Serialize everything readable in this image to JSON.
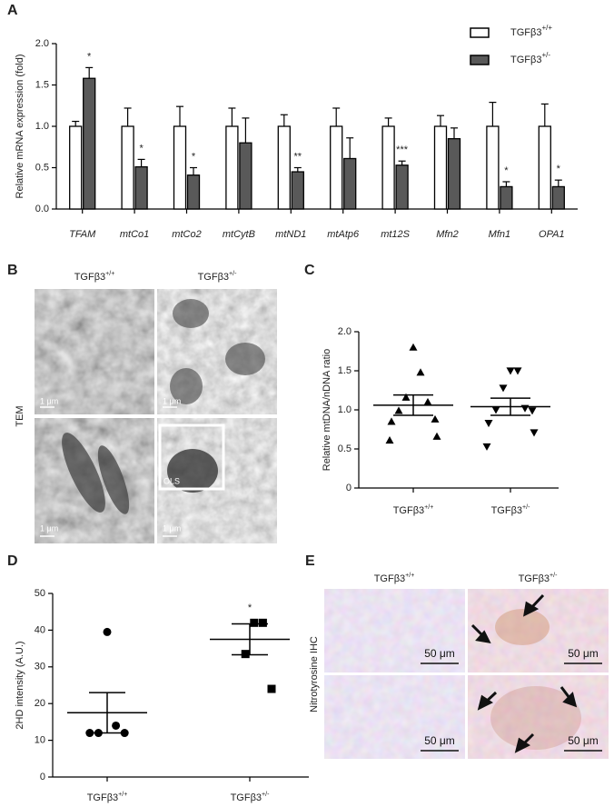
{
  "panel_labels": [
    "A",
    "B",
    "C",
    "D",
    "E"
  ],
  "chart_data": [
    {
      "type": "bar",
      "ylabel": "Relative mRNA expression (fold)",
      "categories": [
        "TFAM",
        "mtCo1",
        "mtCo2",
        "mtCytB",
        "mtND1",
        "mtAtp6",
        "mt12S",
        "Mfn2",
        "Mfn1",
        "OPA1"
      ],
      "series": [
        {
          "name": "TGFβ3",
          "name_sup": "+/+",
          "color": "#ffffff",
          "values": [
            1,
            1,
            1,
            1,
            1,
            1,
            1,
            1,
            1,
            1
          ],
          "errors": [
            0.06,
            0.22,
            0.24,
            0.22,
            0.14,
            0.22,
            0.1,
            0.13,
            0.29,
            0.27
          ]
        },
        {
          "name": "TGFβ3",
          "name_sup": "+/-",
          "color": "#595959",
          "values": [
            1.58,
            0.51,
            0.41,
            0.8,
            0.45,
            0.61,
            0.53,
            0.85,
            0.27,
            0.27
          ],
          "errors": [
            0.13,
            0.09,
            0.09,
            0.3,
            0.05,
            0.25,
            0.05,
            0.13,
            0.06,
            0.08
          ]
        }
      ],
      "significance": [
        "*",
        "*",
        "*",
        null,
        "**",
        null,
        "***",
        null,
        "*",
        "*"
      ],
      "ylim": [
        0,
        2
      ],
      "yticks": [
        {
          "value": 0,
          "label": "0.0"
        },
        0.5,
        {
          "value": 1,
          "label": "1.0"
        },
        1.5,
        {
          "value": 2,
          "label": "2.0"
        }
      ],
      "legend": "upper right"
    },
    {
      "type": "dot",
      "ylabel": "Relative mtDNA/nDNA ratio",
      "categories": [
        "TGFβ3",
        "TGFβ3"
      ],
      "category_sups": [
        "+/+",
        "+/-"
      ],
      "values": [
        [
          1.8,
          1.48,
          1.16,
          1.1,
          0.99,
          0.88,
          0.85,
          0.66,
          0.61
        ],
        [
          1.5,
          1.5,
          1.28,
          1.02,
          1.0,
          0.99,
          0.83,
          0.71,
          0.53
        ]
      ],
      "means": [
        1.06,
        1.04
      ],
      "sem": [
        0.13,
        0.11
      ],
      "markers": [
        "triangle",
        "triangle-down"
      ],
      "color": "#000000",
      "significance": [
        null,
        null
      ],
      "ylim": [
        0,
        2
      ],
      "yticks": [
        0,
        0.5,
        {
          "value": 1,
          "label": "1.0"
        },
        1.5,
        {
          "value": 2,
          "label": "2.0"
        }
      ]
    },
    {
      "type": "dot",
      "ylabel": "2HD intensity (A.U.)",
      "categories": [
        "TGFβ3",
        "TGFβ3"
      ],
      "category_sups": [
        "+/+",
        "+/-"
      ],
      "values": [
        [
          39.5,
          14,
          12,
          12,
          12
        ],
        [
          42,
          42,
          33.5,
          24
        ]
      ],
      "means": [
        17.5,
        37.5
      ],
      "sem": [
        5.5,
        4.2
      ],
      "markers": [
        "circle",
        "square"
      ],
      "color": "#000000",
      "significance": [
        null,
        "*"
      ],
      "ylim": [
        0,
        50
      ],
      "yticks": [
        0,
        10,
        20,
        30,
        40,
        50
      ]
    }
  ],
  "tem": {
    "columns": [
      {
        "text": "TGFβ3",
        "sup": "+/+"
      },
      {
        "text": "TGFβ3",
        "sup": "+/-"
      }
    ],
    "row_label": "TEM",
    "scale_bars": [
      "1 μm",
      "1 μm",
      "1 μm",
      "1 μm"
    ],
    "inset_label": "OLS"
  },
  "ihc": {
    "columns": [
      {
        "text": "TGFβ3",
        "sup": "+/+"
      },
      {
        "text": "TGFβ3",
        "sup": "+/-"
      }
    ],
    "row_label": "Nitrotyrosine IHC",
    "scale_bars": [
      "50 μm",
      "50 μm",
      "50 μm",
      "50 μm"
    ]
  }
}
